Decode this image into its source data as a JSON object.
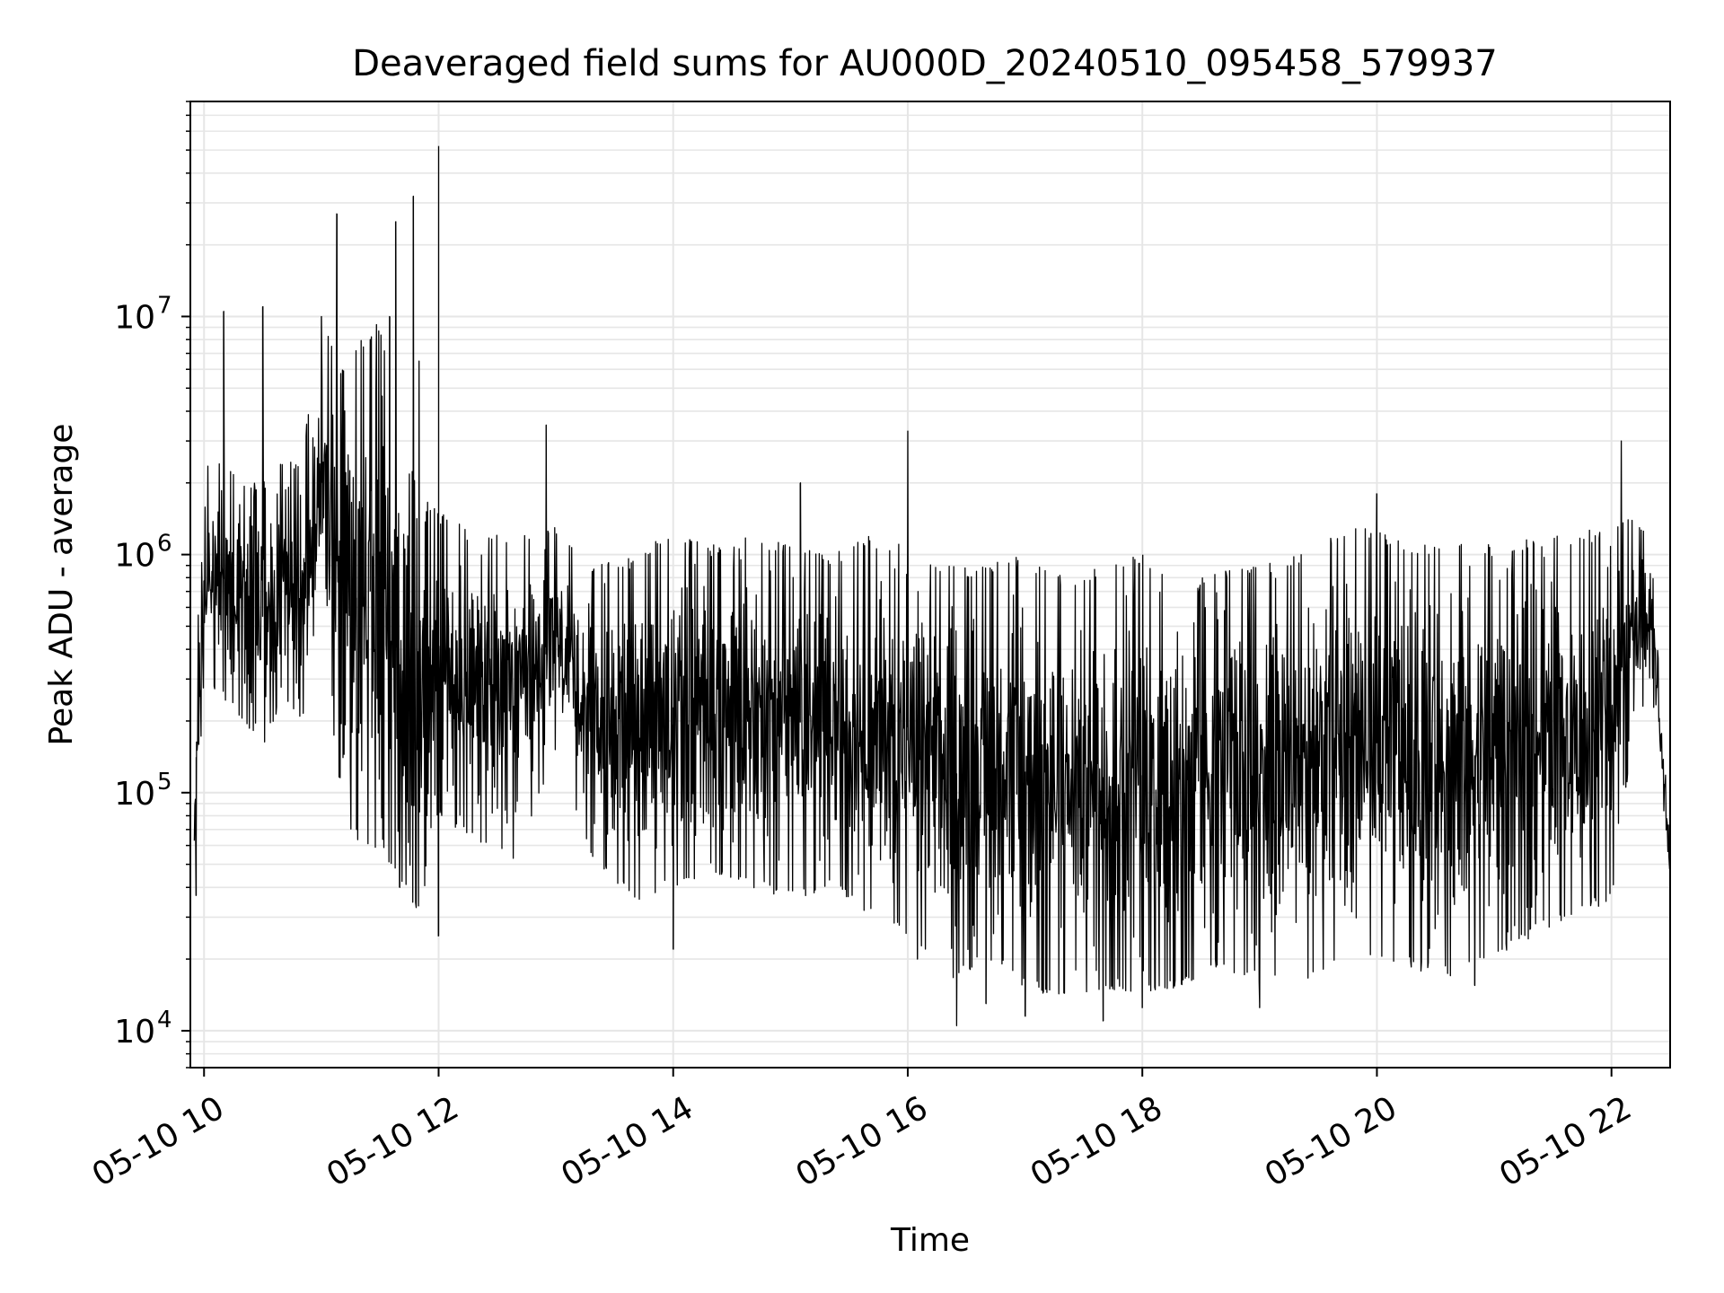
{
  "chart_data": {
    "type": "line",
    "title": "Deaveraged field sums for AU000D_20240510_095458_579937",
    "xlabel": "Time",
    "ylabel": "Peak ADU - average",
    "y_scale": "log",
    "grid": true,
    "line_color": "#000000",
    "grid_color": "#e6e6e6",
    "xlim": [
      "2024-05-10 09:53",
      "2024-05-10 22:30"
    ],
    "ylim": [
      7000,
      80000000
    ],
    "x_ticks": [
      "05-10 10",
      "05-10 12",
      "05-10 14",
      "05-10 16",
      "05-10 18",
      "05-10 20",
      "05-10 22"
    ],
    "x_tick_times": [
      "2024-05-10 10:00",
      "2024-05-10 12:00",
      "2024-05-10 14:00",
      "2024-05-10 16:00",
      "2024-05-10 18:00",
      "2024-05-10 20:00",
      "2024-05-10 22:00"
    ],
    "y_ticks": [
      {
        "base": "10",
        "exp": "4",
        "value": 10000
      },
      {
        "base": "10",
        "exp": "5",
        "value": 100000
      },
      {
        "base": "10",
        "exp": "6",
        "value": 1000000
      },
      {
        "base": "10",
        "exp": "7",
        "value": 10000000
      }
    ],
    "series": [
      {
        "x": [
          "2024-05-10 09:55",
          "2024-05-10 10:00",
          "2024-05-10 10:10",
          "2024-05-10 10:20",
          "2024-05-10 10:30",
          "2024-05-10 10:40",
          "2024-05-10 10:50",
          "2024-05-10 11:00",
          "2024-05-10 11:10",
          "2024-05-10 11:20",
          "2024-05-10 11:30",
          "2024-05-10 11:40",
          "2024-05-10 11:50",
          "2024-05-10 12:00",
          "2024-05-10 12:20",
          "2024-05-10 12:40",
          "2024-05-10 13:00",
          "2024-05-10 13:20",
          "2024-05-10 13:40",
          "2024-05-10 14:00",
          "2024-05-10 14:20",
          "2024-05-10 14:40",
          "2024-05-10 15:00",
          "2024-05-10 15:20",
          "2024-05-10 15:40",
          "2024-05-10 16:00",
          "2024-05-10 16:20",
          "2024-05-10 16:40",
          "2024-05-10 17:00",
          "2024-05-10 17:20",
          "2024-05-10 17:40",
          "2024-05-10 18:00",
          "2024-05-10 18:20",
          "2024-05-10 18:40",
          "2024-05-10 19:00",
          "2024-05-10 19:20",
          "2024-05-10 19:40",
          "2024-05-10 20:00",
          "2024-05-10 20:20",
          "2024-05-10 20:40",
          "2024-05-10 21:00",
          "2024-05-10 21:20",
          "2024-05-10 21:40",
          "2024-05-10 22:00",
          "2024-05-10 22:10",
          "2024-05-10 22:20",
          "2024-05-10 22:30"
        ],
        "y_low": [
          40000,
          300000,
          250000,
          200000,
          150000,
          250000,
          200000,
          400000,
          100000,
          50000,
          60000,
          40000,
          30000,
          80000,
          60000,
          50000,
          150000,
          50000,
          35000,
          40000,
          45000,
          40000,
          35000,
          40000,
          30000,
          25000,
          15000,
          20000,
          15000,
          13000,
          15000,
          14000,
          15000,
          18000,
          16000,
          15000,
          18000,
          20000,
          18000,
          16000,
          20000,
          25000,
          30000,
          35000,
          150000,
          300000,
          45000
        ],
        "y_high": [
          200000,
          2500000,
          2500000,
          2000000,
          2000000,
          2500000,
          2500000,
          10000000,
          6000000,
          8000000,
          10000000,
          3000000,
          2000000,
          1500000,
          1300000,
          1200000,
          1300000,
          900000,
          1000000,
          1300000,
          1100000,
          1200000,
          1100000,
          1000000,
          1200000,
          1100000,
          900000,
          900000,
          1000000,
          800000,
          900000,
          1000000,
          700000,
          900000,
          900000,
          1000000,
          1300000,
          1300000,
          1100000,
          1200000,
          1100000,
          1200000,
          1200000,
          1400000,
          1500000,
          1200000,
          60000
        ],
        "spikes": [
          {
            "x": "2024-05-10 10:10",
            "y": 10500000
          },
          {
            "x": "2024-05-10 10:30",
            "y": 11000000
          },
          {
            "x": "2024-05-10 11:00",
            "y": 10000000
          },
          {
            "x": "2024-05-10 11:08",
            "y": 27000000
          },
          {
            "x": "2024-05-10 11:25",
            "y": 8000000
          },
          {
            "x": "2024-05-10 11:35",
            "y": 10000000
          },
          {
            "x": "2024-05-10 11:38",
            "y": 25000000
          },
          {
            "x": "2024-05-10 11:47",
            "y": 32000000
          },
          {
            "x": "2024-05-10 11:50",
            "y": 6500000
          },
          {
            "x": "2024-05-10 12:00",
            "y": 52000000
          },
          {
            "x": "2024-05-10 12:55",
            "y": 3500000
          },
          {
            "x": "2024-05-10 15:05",
            "y": 2000000
          },
          {
            "x": "2024-05-10 16:00",
            "y": 3300000
          },
          {
            "x": "2024-05-10 20:00",
            "y": 1800000
          },
          {
            "x": "2024-05-10 22:05",
            "y": 3000000
          }
        ],
        "dips": [
          {
            "x": "2024-05-10 09:56",
            "y": 37000
          },
          {
            "x": "2024-05-10 11:18",
            "y": 70000
          },
          {
            "x": "2024-05-10 11:40",
            "y": 40000
          },
          {
            "x": "2024-05-10 12:00",
            "y": 25000
          },
          {
            "x": "2024-05-10 14:00",
            "y": 22000
          },
          {
            "x": "2024-05-10 16:05",
            "y": 20000
          },
          {
            "x": "2024-05-10 16:25",
            "y": 10500
          },
          {
            "x": "2024-05-10 16:40",
            "y": 13000
          },
          {
            "x": "2024-05-10 17:00",
            "y": 11500
          },
          {
            "x": "2024-05-10 17:40",
            "y": 11000
          },
          {
            "x": "2024-05-10 18:00",
            "y": 12500
          },
          {
            "x": "2024-05-10 19:00",
            "y": 12500
          },
          {
            "x": "2024-05-10 20:50",
            "y": 15500
          }
        ]
      }
    ]
  }
}
